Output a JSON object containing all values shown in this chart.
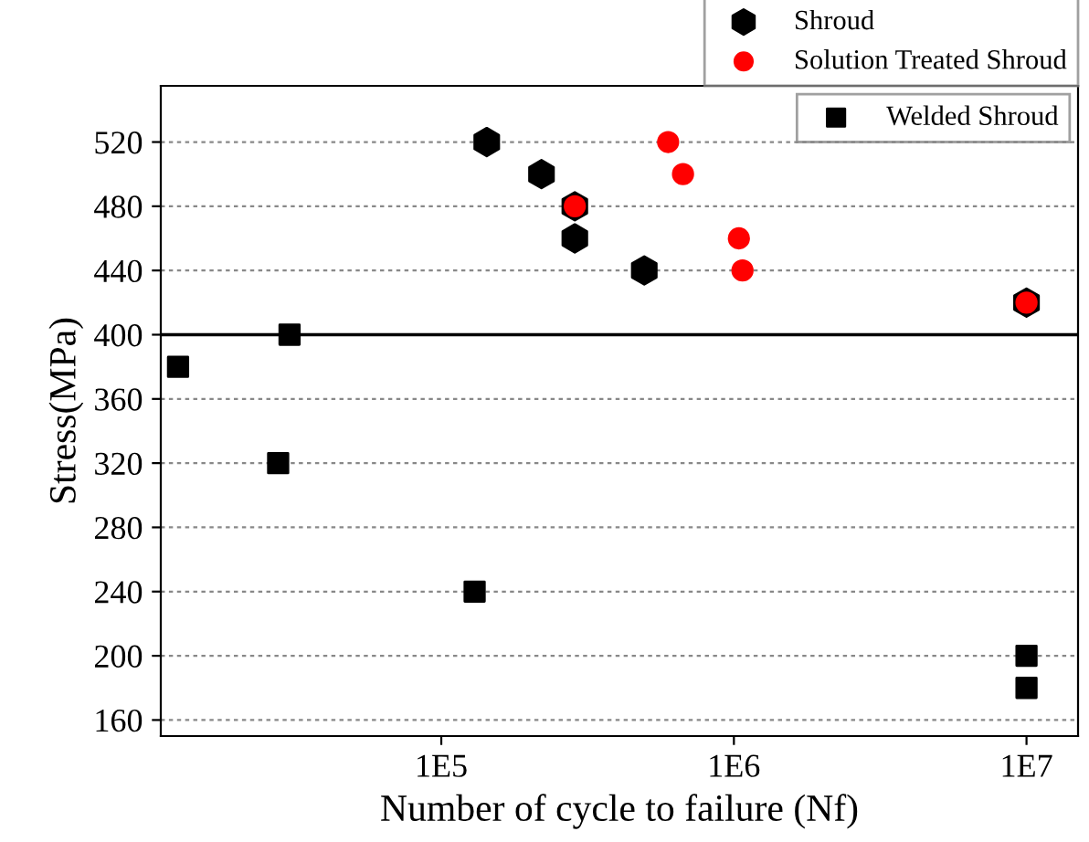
{
  "chart_data": {
    "type": "scatter",
    "xlabel": "Number of cycle to failure (Nf)",
    "ylabel": "Stress(MPa)",
    "log": "x",
    "xlim": [
      11000,
      15000000
    ],
    "xticks": [
      {
        "value": 100000,
        "label": "1E5"
      },
      {
        "value": 1000000,
        "label": "1E6"
      },
      {
        "value": 10000000,
        "label": "1E7"
      }
    ],
    "ylim": [
      150,
      555
    ],
    "yticks": [
      160,
      200,
      240,
      280,
      320,
      360,
      400,
      440,
      480,
      520
    ],
    "grid": "y",
    "legend": "top right",
    "ref_lines": [
      {
        "axis": "y",
        "value": 400,
        "color": "#000000",
        "line_style": "solid"
      }
    ],
    "series": [
      {
        "name": "Shroud",
        "color": "#000000",
        "x": [
          143000,
          220000,
          286000,
          286000,
          494000,
          10000000
        ],
        "values": [
          520,
          500,
          480,
          460,
          440,
          420
        ]
      },
      {
        "name": "Solution Treated Shroud",
        "color": "#ff0000",
        "marker": "circle",
        "x": [
          596000,
          670000,
          286000,
          1040000,
          1070000,
          10000000
        ],
        "values": [
          520,
          500,
          480,
          460,
          440,
          420
        ]
      },
      {
        "name": "Welded Shroud",
        "color": "#000000",
        "marker": "square",
        "x": [
          12600,
          30300,
          27700,
          130000,
          10000000,
          10000000
        ],
        "values": [
          380,
          400,
          320,
          240,
          200,
          180
        ]
      }
    ]
  }
}
